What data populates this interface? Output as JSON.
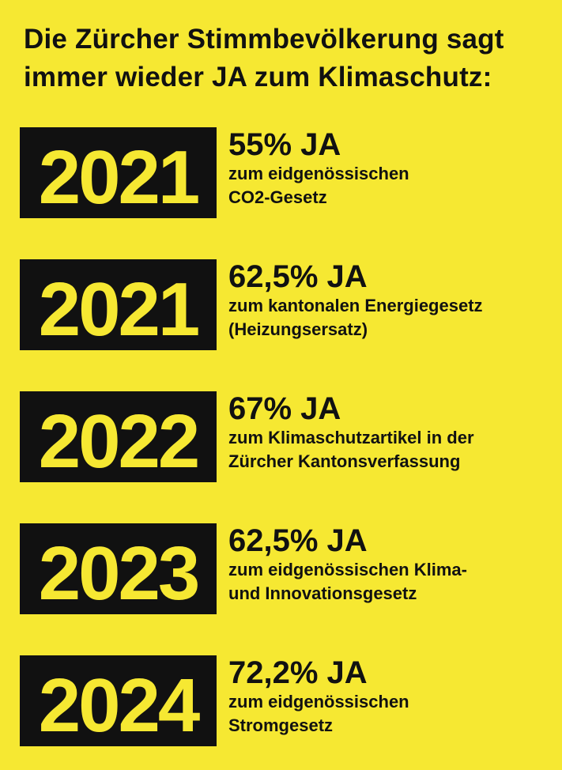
{
  "headline": {
    "line1": "Die Zürcher Stimmbevölkerung sagt",
    "line2": "immer wieder JA zum Klimaschutz:"
  },
  "colors": {
    "background": "#f6e832",
    "box": "#111111",
    "text": "#111111"
  },
  "entries": [
    {
      "year": "2021",
      "result": "55% JA",
      "desc_line1": "zum eidgenössischen",
      "desc_line2": "CO2-Gesetz"
    },
    {
      "year": "2021",
      "result": "62,5% JA",
      "desc_line1": "zum kantonalen Energiegesetz",
      "desc_line2": "(Heizungsersatz)"
    },
    {
      "year": "2022",
      "result": "67% JA",
      "desc_line1": "zum Klimaschutzartikel in der",
      "desc_line2": "Zürcher Kantonsverfassung"
    },
    {
      "year": "2023",
      "result": "62,5% JA",
      "desc_line1": "zum eidgenössischen Klima-",
      "desc_line2": "und Innovationsgesetz"
    },
    {
      "year": "2024",
      "result": "72,2% JA",
      "desc_line1": "zum eidgenössischen",
      "desc_line2": "Stromgesetz"
    }
  ]
}
